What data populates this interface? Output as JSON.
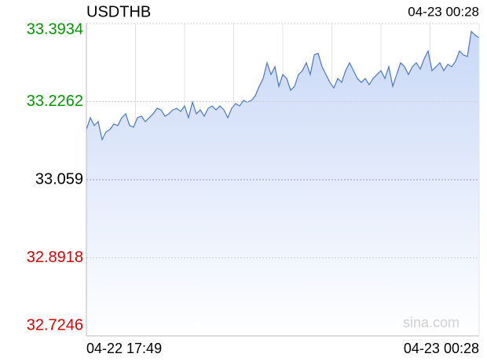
{
  "chart_data": {
    "type": "line",
    "title": "USDTHB",
    "categories": [
      "04-22 17:49",
      null,
      null,
      null,
      null,
      null,
      null,
      null,
      null,
      null,
      null,
      null,
      null,
      null,
      null,
      null,
      null,
      null,
      null,
      null,
      null,
      null,
      null,
      null,
      null,
      null,
      null,
      null,
      null,
      null,
      null,
      null,
      null,
      null,
      null,
      null,
      null,
      null,
      null,
      null,
      null,
      null,
      null,
      null,
      null,
      null,
      null,
      null,
      null,
      null,
      null,
      null,
      null,
      null,
      null,
      null,
      null,
      null,
      null,
      null,
      null,
      null,
      null,
      null,
      null,
      null,
      null,
      null,
      null,
      null,
      null,
      null,
      null,
      null,
      null,
      null,
      null,
      null,
      null,
      null,
      null,
      null,
      null,
      null,
      null,
      null,
      null,
      null,
      null,
      null,
      null,
      null,
      null,
      null,
      null,
      null,
      null,
      null,
      null,
      null,
      "04-23 00:28"
    ],
    "values": [
      33.1665,
      33.1918,
      33.1749,
      33.1834,
      33.1447,
      33.1615,
      33.1665,
      33.1783,
      33.1749,
      33.1918,
      33.2002,
      33.1749,
      33.1716,
      33.1918,
      33.1951,
      33.1834,
      33.1918,
      33.2002,
      33.2119,
      33.2086,
      33.1951,
      33.2002,
      33.2086,
      33.2119,
      33.2052,
      33.217,
      33.1918,
      33.2254,
      33.2002,
      33.2086,
      33.1951,
      33.2119,
      33.217,
      33.2086,
      33.217,
      33.2086,
      33.1918,
      33.2119,
      33.222,
      33.217,
      33.2287,
      33.2254,
      33.2287,
      33.2388,
      33.259,
      33.2758,
      33.3094,
      33.2842,
      33.301,
      33.259,
      33.2842,
      33.2758,
      33.2506,
      33.259,
      33.2842,
      33.2926,
      33.3094,
      33.2842,
      33.3262,
      33.3296,
      33.301,
      33.2842,
      33.2674,
      33.2556,
      33.2758,
      33.2674,
      33.2926,
      33.3094,
      33.2926,
      33.2758,
      33.2674,
      33.2758,
      33.2624,
      33.2758,
      33.2842,
      33.2926,
      33.2758,
      33.301,
      33.259,
      33.2842,
      33.3094,
      33.301,
      33.2842,
      33.301,
      33.3094,
      33.2959,
      33.3178,
      33.3346,
      33.2926,
      33.301,
      33.3094,
      33.2926,
      33.306,
      33.301,
      33.3127,
      33.3346,
      33.3262,
      33.3228,
      33.3766,
      33.3682,
      33.3632
    ],
    "color": "#4a78c8",
    "ylim": [
      32.7246,
      33.3934
    ],
    "yticks": [
      33.3934,
      33.2262,
      33.059,
      32.8918,
      32.7246
    ],
    "ytick_colors": [
      "#009900",
      "#009900",
      "#000000",
      "#dd0000",
      "#dd0000"
    ],
    "grid": true,
    "watermark": "sina.com"
  }
}
